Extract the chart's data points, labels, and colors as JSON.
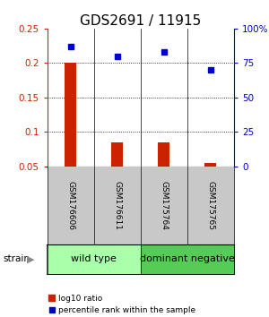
{
  "title": "GDS2691 / 11915",
  "samples": [
    "GSM176606",
    "GSM176611",
    "GSM175764",
    "GSM175765"
  ],
  "log10_ratio": [
    0.2,
    0.085,
    0.085,
    0.055
  ],
  "percentile_rank": [
    87,
    80,
    83,
    70
  ],
  "ylim_left": [
    0.05,
    0.25
  ],
  "ylim_right": [
    0,
    100
  ],
  "yticks_left": [
    0.05,
    0.1,
    0.15,
    0.2,
    0.25
  ],
  "yticks_right": [
    0,
    25,
    50,
    75,
    100
  ],
  "ytick_labels_right": [
    "0",
    "25",
    "50",
    "75",
    "100%"
  ],
  "bar_color": "#cc2200",
  "dot_color": "#0000cc",
  "groups": [
    {
      "label": "wild type",
      "samples": [
        0,
        1
      ],
      "color": "#aaffaa"
    },
    {
      "label": "dominant negative",
      "samples": [
        2,
        3
      ],
      "color": "#55cc55"
    }
  ],
  "legend_bar_label": "log10 ratio",
  "legend_dot_label": "percentile rank within the sample",
  "strain_label": "strain",
  "sample_box_color": "#c8c8c8",
  "title_fontsize": 11,
  "tick_fontsize": 7.5,
  "group_fontsize": 8
}
